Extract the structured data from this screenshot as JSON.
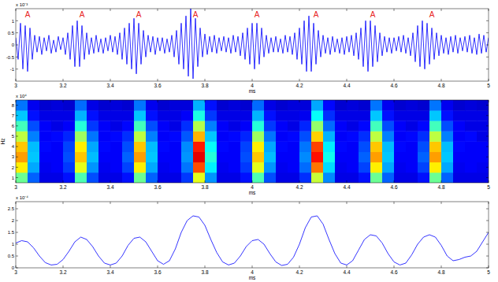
{
  "chart_data": [
    {
      "type": "line",
      "x": [
        3,
        3.01,
        3.02,
        3.03,
        3.04,
        3.05,
        3.06,
        3.07,
        3.08,
        3.09,
        3.1,
        3.11,
        3.12,
        3.13,
        3.14,
        3.15,
        3.16,
        3.17,
        3.18,
        3.19,
        3.2,
        3.21,
        3.22,
        3.23,
        3.24,
        3.25,
        3.26,
        3.27,
        3.28,
        3.29,
        3.3,
        3.31,
        3.32,
        3.33,
        3.34,
        3.35,
        3.36,
        3.37,
        3.38,
        3.39,
        3.4,
        3.41,
        3.42,
        3.43,
        3.44,
        3.45,
        3.46,
        3.47,
        3.48,
        3.49,
        3.5,
        3.51,
        3.52,
        3.53,
        3.54,
        3.55,
        3.56,
        3.57,
        3.58,
        3.59,
        3.6,
        3.61,
        3.62,
        3.63,
        3.64,
        3.65,
        3.66,
        3.67,
        3.68,
        3.69,
        3.7,
        3.71,
        3.72,
        3.73,
        3.74,
        3.75,
        3.76,
        3.77,
        3.78,
        3.79,
        3.8,
        3.81,
        3.82,
        3.83,
        3.84,
        3.85,
        3.86,
        3.87,
        3.88,
        3.89,
        3.9,
        3.91,
        3.92,
        3.93,
        3.94,
        3.95,
        3.96,
        3.97,
        3.98,
        3.99,
        4,
        4.01,
        4.02,
        4.03,
        4.04,
        4.05,
        4.06,
        4.07,
        4.08,
        4.09,
        4.1,
        4.11,
        4.12,
        4.13,
        4.14,
        4.15,
        4.16,
        4.17,
        4.18,
        4.19,
        4.2,
        4.21,
        4.22,
        4.23,
        4.24,
        4.25,
        4.26,
        4.27,
        4.28,
        4.29,
        4.3,
        4.31,
        4.32,
        4.33,
        4.34,
        4.35,
        4.36,
        4.37,
        4.38,
        4.39,
        4.4,
        4.41,
        4.42,
        4.43,
        4.44,
        4.45,
        4.46,
        4.47,
        4.48,
        4.49,
        4.5,
        4.51,
        4.52,
        4.53,
        4.54,
        4.55,
        4.56,
        4.57,
        4.58,
        4.59,
        4.6,
        4.61,
        4.62,
        4.63,
        4.64,
        4.65,
        4.66,
        4.67,
        4.68,
        4.69,
        4.7,
        4.71,
        4.72,
        4.73,
        4.74,
        4.75,
        4.76,
        4.77,
        4.78,
        4.79,
        4.8,
        4.81,
        4.82,
        4.83,
        4.84,
        4.85,
        4.86,
        4.87,
        4.88,
        4.89,
        4.9,
        4.91,
        4.92,
        4.93,
        4.94,
        4.95,
        4.96,
        4.97,
        4.98,
        4.99,
        5
      ],
      "series": [
        {
          "color": "#0000ff",
          "values": [
            0.3,
            -0.6,
            0.9,
            -1.0,
            0.8,
            -1.1,
            0.7,
            -0.6,
            0.4,
            -0.3,
            0.35,
            -0.4,
            0.3,
            -0.25,
            0.4,
            -0.35,
            0.2,
            -0.3,
            0.35,
            -0.2,
            0.3,
            -0.4,
            0.5,
            -0.6,
            0.8,
            -0.9,
            1.0,
            -0.9,
            0.8,
            -0.6,
            0.5,
            -0.4,
            0.3,
            -0.35,
            0.4,
            -0.3,
            0.25,
            -0.35,
            0.3,
            -0.25,
            0.4,
            -0.3,
            0.35,
            -0.4,
            0.5,
            -0.6,
            0.7,
            -0.8,
            0.9,
            -1.0,
            1.1,
            -1.2,
            0.9,
            -0.8,
            0.6,
            -0.5,
            0.4,
            -0.3,
            0.35,
            -0.4,
            0.3,
            -0.25,
            0.3,
            -0.35,
            0.25,
            -0.3,
            0.4,
            -0.5,
            0.6,
            -0.8,
            0.9,
            -1.0,
            1.2,
            -1.3,
            1.5,
            -1.4,
            1.1,
            -0.9,
            0.7,
            -0.5,
            0.45,
            -0.4,
            0.35,
            -0.3,
            0.4,
            -0.35,
            0.3,
            -0.25,
            0.35,
            -0.3,
            0.3,
            -0.35,
            0.4,
            -0.3,
            0.35,
            -0.45,
            0.5,
            -0.6,
            0.7,
            -0.8,
            0.9,
            -1.0,
            0.9,
            -0.8,
            0.7,
            -0.5,
            0.4,
            -0.35,
            0.3,
            -0.3,
            0.35,
            -0.3,
            0.25,
            -0.35,
            0.4,
            -0.3,
            0.35,
            -0.4,
            0.5,
            -0.6,
            0.7,
            -0.8,
            1.0,
            -1.1,
            1.2,
            -1.1,
            0.9,
            -0.8,
            0.6,
            -0.5,
            0.4,
            -0.35,
            0.3,
            -0.4,
            0.35,
            -0.3,
            0.25,
            -0.35,
            0.3,
            -0.4,
            0.35,
            -0.3,
            0.4,
            -0.45,
            0.5,
            -0.6,
            0.7,
            -0.9,
            1.0,
            -1.1,
            1.0,
            -0.9,
            0.8,
            -0.7,
            0.5,
            -0.45,
            0.35,
            -0.3,
            0.3,
            -0.35,
            0.3,
            -0.25,
            0.35,
            -0.3,
            0.4,
            -0.35,
            0.3,
            -0.45,
            0.5,
            -0.7,
            0.8,
            -0.9,
            1.0,
            -1.0,
            0.9,
            -0.8,
            0.7,
            -0.6,
            0.5,
            -0.45,
            0.4,
            -0.35,
            0.3,
            -0.4,
            0.35,
            -0.3,
            0.4,
            -0.35,
            0.3,
            -0.25,
            0.35,
            -0.3,
            0.4,
            -0.35,
            0.3,
            -0.4,
            0.45,
            -0.35,
            0.4,
            -0.3,
            0.3
          ]
        }
      ],
      "xlim": [
        3,
        5
      ],
      "xticks": [
        3,
        3.2,
        3.4,
        3.6,
        3.8,
        4,
        4.2,
        4.4,
        4.6,
        4.8,
        5
      ],
      "xlabel": "ms",
      "ylim": [
        -1.5,
        1.5
      ],
      "yticks": [
        -1,
        -0.5,
        0,
        0.5,
        1
      ],
      "y_multiplier": "x 10⁻³",
      "annotations": [
        {
          "text": "A",
          "x": 3.05
        },
        {
          "text": "A",
          "x": 3.28
        },
        {
          "text": "A",
          "x": 3.52
        },
        {
          "text": "A",
          "x": 3.76
        },
        {
          "text": "A",
          "x": 4.02
        },
        {
          "text": "A",
          "x": 4.27
        },
        {
          "text": "A",
          "x": 4.51
        },
        {
          "text": "A",
          "x": 4.76
        }
      ]
    },
    {
      "type": "heatmap",
      "x": [
        3.025,
        3.075,
        3.125,
        3.175,
        3.225,
        3.275,
        3.325,
        3.375,
        3.425,
        3.475,
        3.525,
        3.575,
        3.625,
        3.675,
        3.725,
        3.775,
        3.825,
        3.875,
        3.925,
        3.975,
        4.025,
        4.075,
        4.125,
        4.175,
        4.225,
        4.275,
        4.325,
        4.375,
        4.425,
        4.475,
        4.525,
        4.575,
        4.625,
        4.675,
        4.725,
        4.775,
        4.825,
        4.875,
        4.925,
        4.975
      ],
      "y": [
        1,
        2,
        3,
        4,
        5,
        6,
        7,
        8
      ],
      "cells": [
        [
          0.48,
          0.22,
          0.1,
          0.1,
          0.14,
          0.45,
          0.2,
          0.1,
          0.1,
          0.14,
          0.48,
          0.22,
          0.1,
          0.1,
          0.18,
          0.6,
          0.27,
          0.1,
          0.1,
          0.14,
          0.45,
          0.2,
          0.1,
          0.1,
          0.17,
          0.57,
          0.26,
          0.1,
          0.1,
          0.14,
          0.48,
          0.22,
          0.1,
          0.1,
          0.14,
          0.48,
          0.22,
          0.1,
          0.1,
          0.1
        ],
        [
          0.64,
          0.29,
          0.11,
          0.12,
          0.18,
          0.6,
          0.27,
          0.11,
          0.12,
          0.19,
          0.64,
          0.29,
          0.11,
          0.12,
          0.24,
          0.8,
          0.36,
          0.11,
          0.12,
          0.18,
          0.6,
          0.27,
          0.11,
          0.12,
          0.23,
          0.76,
          0.34,
          0.11,
          0.12,
          0.19,
          0.64,
          0.29,
          0.11,
          0.12,
          0.19,
          0.64,
          0.29,
          0.11,
          0.12,
          0.11
        ],
        [
          0.72,
          0.32,
          0.12,
          0.12,
          0.2,
          0.68,
          0.31,
          0.12,
          0.12,
          0.22,
          0.72,
          0.32,
          0.12,
          0.12,
          0.27,
          0.9,
          0.41,
          0.12,
          0.12,
          0.2,
          0.68,
          0.31,
          0.12,
          0.12,
          0.26,
          0.86,
          0.39,
          0.12,
          0.12,
          0.22,
          0.72,
          0.32,
          0.12,
          0.12,
          0.22,
          0.72,
          0.32,
          0.12,
          0.12,
          0.12
        ],
        [
          0.68,
          0.31,
          0.13,
          0.12,
          0.19,
          0.64,
          0.29,
          0.13,
          0.12,
          0.2,
          0.68,
          0.31,
          0.13,
          0.12,
          0.26,
          0.85,
          0.38,
          0.13,
          0.12,
          0.19,
          0.64,
          0.29,
          0.13,
          0.12,
          0.24,
          0.81,
          0.36,
          0.13,
          0.12,
          0.2,
          0.68,
          0.31,
          0.13,
          0.12,
          0.2,
          0.68,
          0.31,
          0.13,
          0.12,
          0.12
        ],
        [
          0.56,
          0.25,
          0.12,
          0.13,
          0.16,
          0.53,
          0.24,
          0.12,
          0.13,
          0.17,
          0.56,
          0.25,
          0.12,
          0.13,
          0.21,
          0.7,
          0.32,
          0.12,
          0.13,
          0.16,
          0.53,
          0.24,
          0.12,
          0.13,
          0.2,
          0.67,
          0.3,
          0.12,
          0.13,
          0.17,
          0.56,
          0.25,
          0.12,
          0.13,
          0.17,
          0.56,
          0.25,
          0.12,
          0.13,
          0.1
        ],
        [
          0.44,
          0.2,
          0.12,
          0.1,
          0.12,
          0.41,
          0.18,
          0.12,
          0.1,
          0.13,
          0.44,
          0.2,
          0.12,
          0.1,
          0.17,
          0.55,
          0.25,
          0.12,
          0.1,
          0.12,
          0.41,
          0.18,
          0.12,
          0.1,
          0.16,
          0.52,
          0.23,
          0.12,
          0.1,
          0.13,
          0.44,
          0.2,
          0.12,
          0.1,
          0.13,
          0.44,
          0.2,
          0.12,
          0.1,
          0.1
        ],
        [
          0.32,
          0.14,
          0.1,
          0.1,
          0.1,
          0.3,
          0.14,
          0.1,
          0.1,
          0.1,
          0.32,
          0.14,
          0.1,
          0.1,
          0.12,
          0.4,
          0.18,
          0.1,
          0.1,
          0.1,
          0.3,
          0.14,
          0.1,
          0.1,
          0.11,
          0.38,
          0.17,
          0.1,
          0.1,
          0.1,
          0.32,
          0.14,
          0.1,
          0.1,
          0.1,
          0.32,
          0.14,
          0.1,
          0.1,
          0.1
        ],
        [
          0.24,
          0.11,
          0.08,
          0.09,
          0.08,
          0.23,
          0.1,
          0.08,
          0.09,
          0.08,
          0.24,
          0.11,
          0.08,
          0.09,
          0.09,
          0.3,
          0.14,
          0.08,
          0.09,
          0.08,
          0.23,
          0.1,
          0.08,
          0.09,
          0.09,
          0.29,
          0.13,
          0.08,
          0.09,
          0.08,
          0.24,
          0.11,
          0.08,
          0.09,
          0.08,
          0.24,
          0.11,
          0.08,
          0.09,
          0.08
        ]
      ],
      "clim": [
        0,
        1
      ],
      "xlim": [
        3,
        5
      ],
      "xticks": [
        3,
        3.2,
        3.4,
        3.6,
        3.8,
        4,
        4.2,
        4.4,
        4.6,
        4.8,
        5
      ],
      "xlabel": "ms",
      "ylabel": "Hz",
      "ylim": [
        0.5,
        8.5
      ],
      "yticks": [
        1,
        2,
        3,
        4,
        5,
        6,
        7,
        8
      ],
      "y_multiplier": "x 10⁴"
    },
    {
      "type": "line",
      "x": [
        3,
        3.025,
        3.05,
        3.075,
        3.1,
        3.125,
        3.15,
        3.175,
        3.2,
        3.225,
        3.25,
        3.275,
        3.3,
        3.325,
        3.35,
        3.375,
        3.4,
        3.425,
        3.45,
        3.475,
        3.5,
        3.525,
        3.55,
        3.575,
        3.6,
        3.625,
        3.65,
        3.675,
        3.7,
        3.725,
        3.75,
        3.775,
        3.8,
        3.825,
        3.85,
        3.875,
        3.9,
        3.925,
        3.95,
        3.975,
        4,
        4.025,
        4.05,
        4.075,
        4.1,
        4.125,
        4.15,
        4.175,
        4.2,
        4.225,
        4.25,
        4.275,
        4.3,
        4.325,
        4.35,
        4.375,
        4.4,
        4.425,
        4.45,
        4.475,
        4.5,
        4.525,
        4.55,
        4.575,
        4.6,
        4.625,
        4.65,
        4.675,
        4.7,
        4.725,
        4.75,
        4.775,
        4.8,
        4.825,
        4.85,
        4.875,
        4.9,
        4.925,
        4.95,
        4.975,
        5
      ],
      "series": [
        {
          "color": "#0000ff",
          "values": [
            1.05,
            1.15,
            1.1,
            0.85,
            0.5,
            0.22,
            0.12,
            0.15,
            0.35,
            0.7,
            1.1,
            1.3,
            1.2,
            0.9,
            0.5,
            0.2,
            0.12,
            0.2,
            0.5,
            0.95,
            1.25,
            1.3,
            1.1,
            0.7,
            0.3,
            0.15,
            0.3,
            0.8,
            1.5,
            2.0,
            2.2,
            2.15,
            1.8,
            1.2,
            0.65,
            0.25,
            0.12,
            0.2,
            0.5,
            0.9,
            1.15,
            1.2,
            1.0,
            0.6,
            0.25,
            0.1,
            0.15,
            0.45,
            1.0,
            1.7,
            2.15,
            2.2,
            1.85,
            1.2,
            0.6,
            0.2,
            0.12,
            0.3,
            0.75,
            1.2,
            1.4,
            1.35,
            1.05,
            0.6,
            0.25,
            0.12,
            0.2,
            0.55,
            1.0,
            1.3,
            1.4,
            1.3,
            0.95,
            0.5,
            0.3,
            0.35,
            0.45,
            0.5,
            0.7,
            1.1,
            1.5
          ]
        }
      ],
      "xlim": [
        3,
        5
      ],
      "xticks": [
        3,
        3.2,
        3.4,
        3.6,
        3.8,
        4,
        4.2,
        4.4,
        4.6,
        4.8,
        5
      ],
      "xlabel": "ms",
      "ylim": [
        0,
        2.8
      ],
      "yticks": [
        0,
        0.5,
        1,
        1.5,
        2,
        2.5
      ],
      "y_multiplier": "x 10⁻⁴"
    }
  ]
}
